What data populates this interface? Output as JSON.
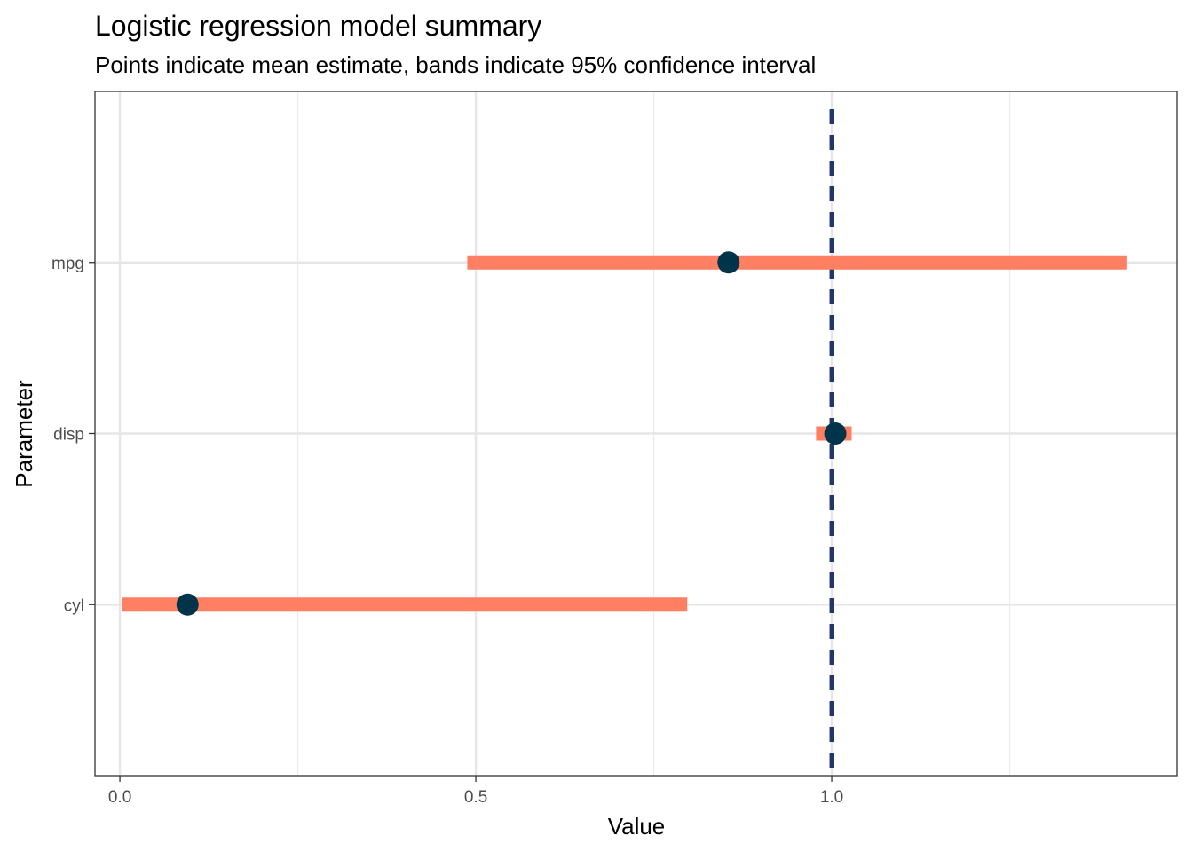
{
  "chart_data": {
    "type": "forest",
    "title": "Logistic regression model summary",
    "subtitle": "Points indicate mean estimate, bands indicate 95% confidence interval",
    "xlabel": "Value",
    "ylabel": "Parameter",
    "xlim": [
      -0.035,
      1.485
    ],
    "x_ticks": [
      0.0,
      0.5,
      1.0
    ],
    "x_tick_labels": [
      "0.0",
      "0.5",
      "1.0"
    ],
    "categories": [
      "mpg",
      "disp",
      "cyl"
    ],
    "estimates": [
      {
        "parameter": "mpg",
        "mean": 0.855,
        "lower": 0.488,
        "upper": 1.415
      },
      {
        "parameter": "disp",
        "mean": 1.005,
        "lower": 0.978,
        "upper": 1.028
      },
      {
        "parameter": "cyl",
        "mean": 0.095,
        "lower": 0.003,
        "upper": 0.797
      }
    ],
    "reference_line": 1.0,
    "grid": true,
    "colors": {
      "band": "#FF7F62",
      "point": "#00344A",
      "reference_line": "#23366C"
    }
  }
}
